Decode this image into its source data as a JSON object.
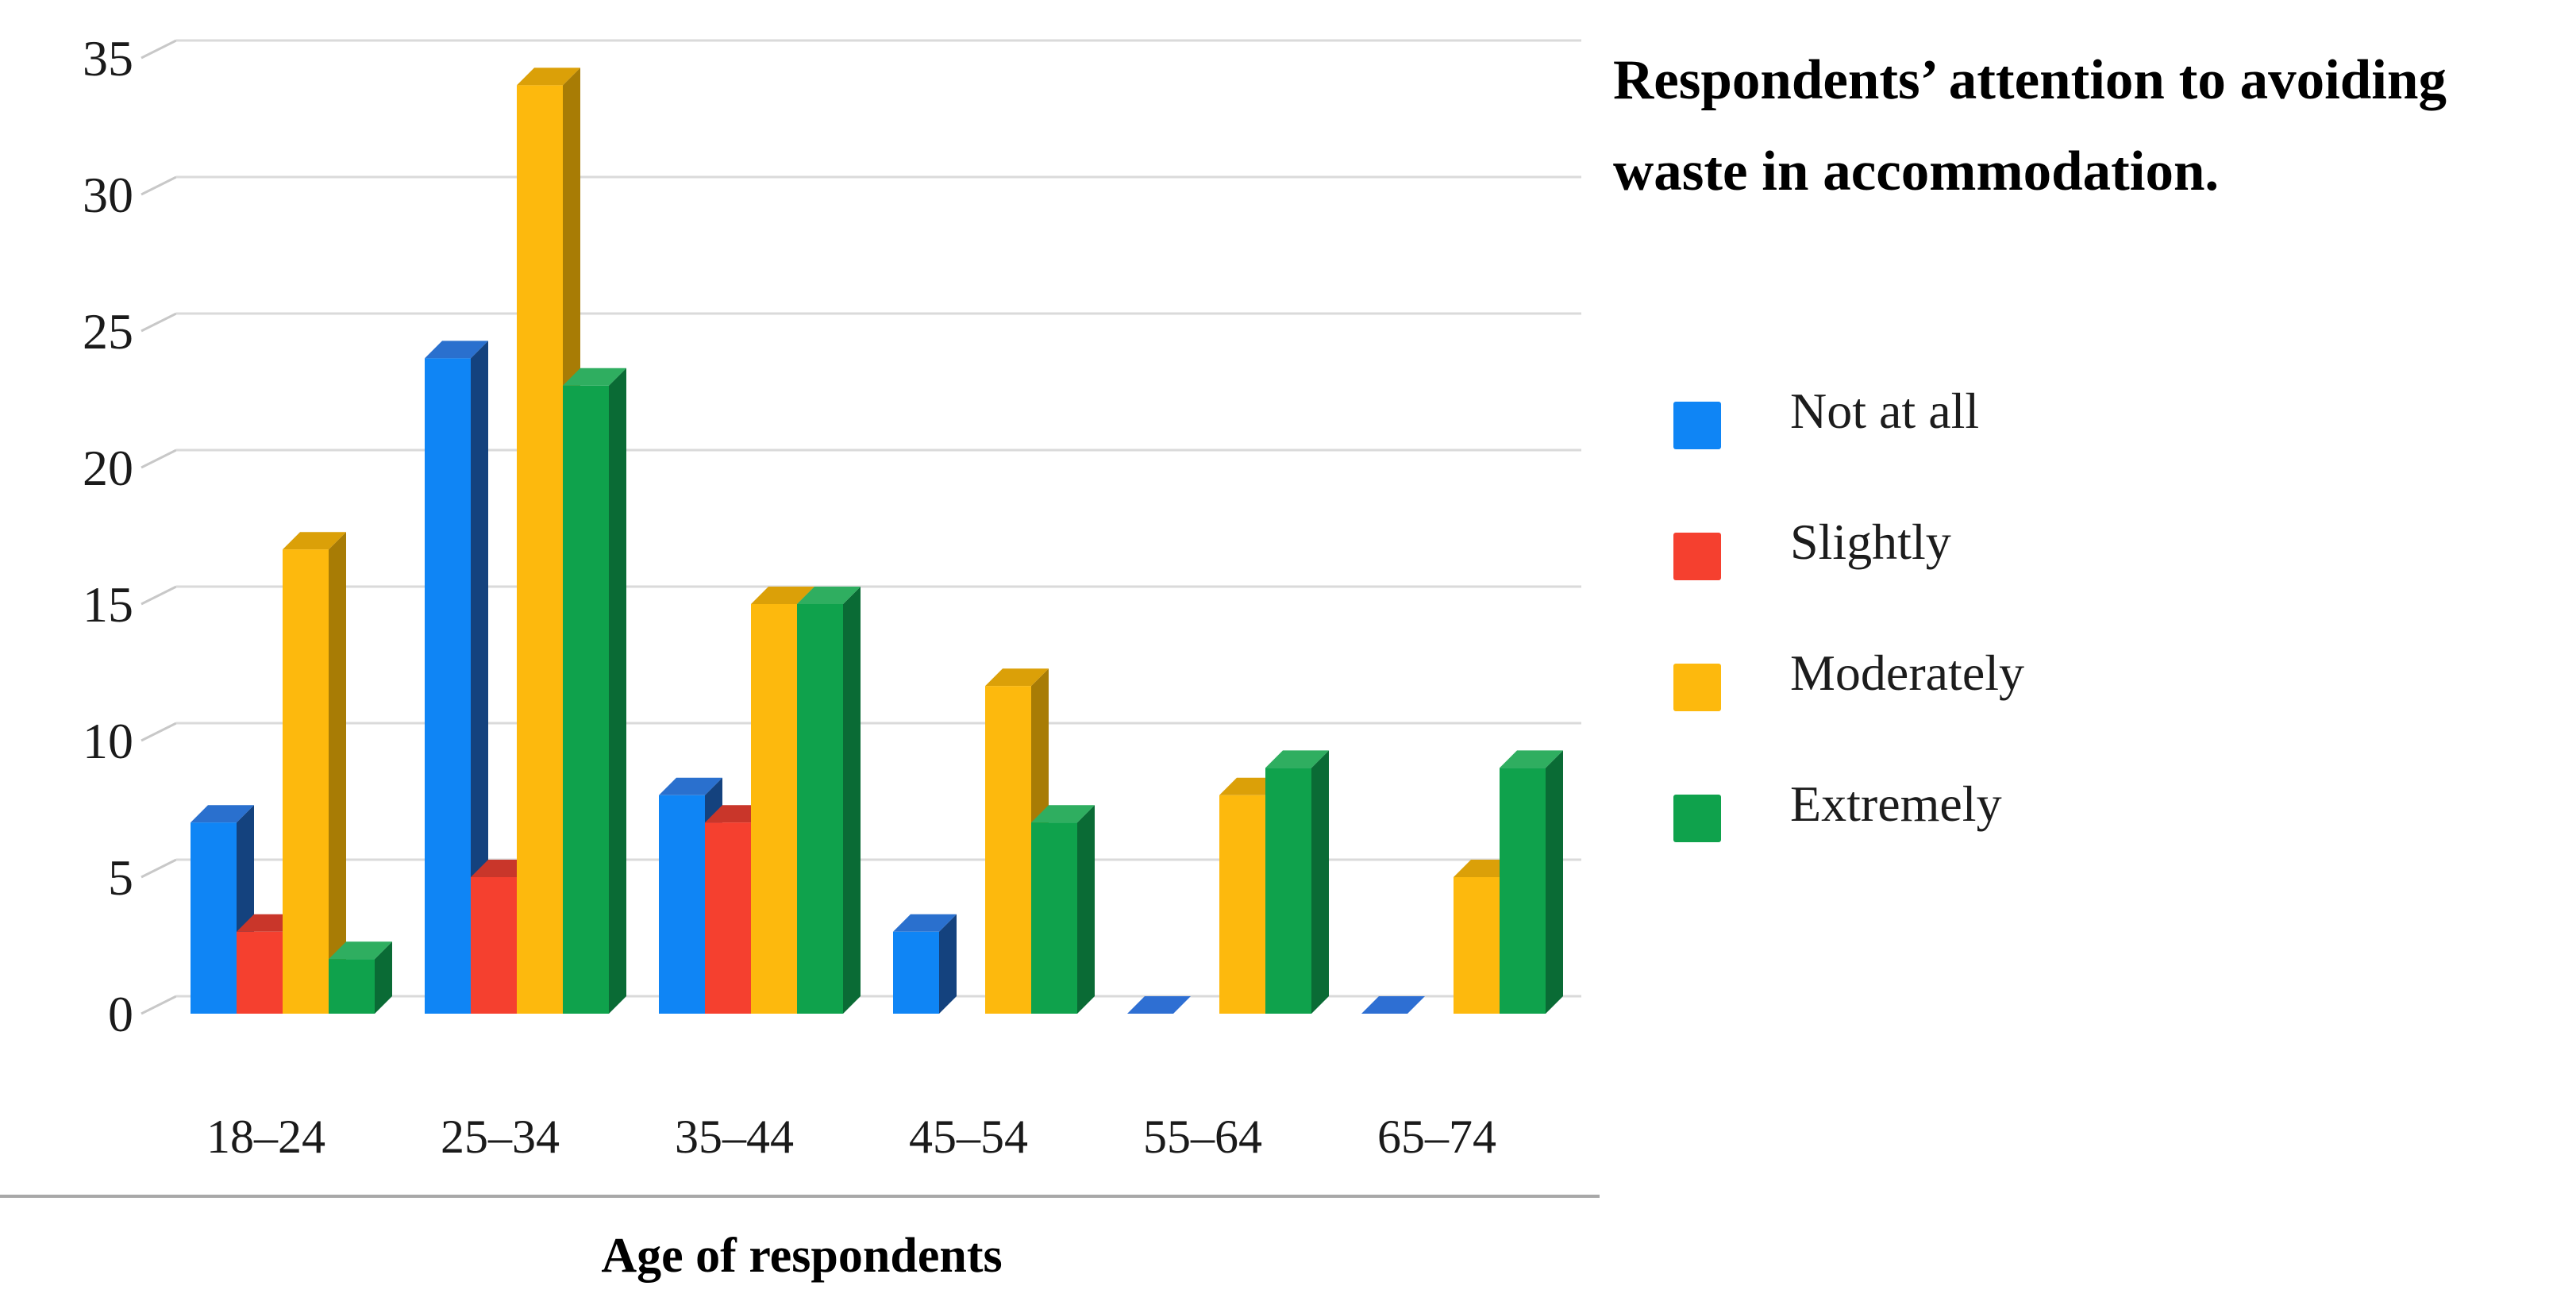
{
  "page": {
    "background": "#ffffff"
  },
  "title": {
    "text": "Respondents’ attention to avoiding waste in accommodation."
  },
  "chart_data": {
    "type": "bar",
    "bar_style": "3d-column",
    "title": "Respondents’ attention to avoiding waste in accommodation.",
    "xlabel": "Age of respondents",
    "ylabel": "",
    "ylim": [
      0,
      35
    ],
    "yticks": [
      0,
      5,
      10,
      15,
      20,
      25,
      30,
      35
    ],
    "grid": true,
    "legend_position": "right",
    "categories": [
      "18–24",
      "25–34",
      "35–44",
      "45–54",
      "55–64",
      "65–74"
    ],
    "series": [
      {
        "name": "Not at all",
        "color": "#0F85F5",
        "top_color": "#2A70CE",
        "side_color": "#14427E",
        "zero_cap_color": "#2E6FD3",
        "zero_marker": "flat-cap",
        "values": [
          7,
          24,
          8,
          3,
          0,
          0
        ]
      },
      {
        "name": "Slightly",
        "color": "#F5402F",
        "top_color": "#C9362A",
        "side_color": "#9B2A1F",
        "zero_marker": "none",
        "values": [
          3,
          5,
          7,
          0,
          0,
          0
        ]
      },
      {
        "name": "Moderately",
        "color": "#FDB90D",
        "top_color": "#DBA008",
        "side_color": "#A87C05",
        "zero_marker": "none",
        "values": [
          17,
          34,
          15,
          12,
          8,
          5
        ]
      },
      {
        "name": "Extremely",
        "color": "#0FA24C",
        "top_color": "#2FAE60",
        "side_color": "#0A6B35",
        "zero_marker": "none",
        "values": [
          2,
          23,
          15,
          7,
          9,
          9
        ]
      }
    ],
    "colors": {
      "gridline": "#dadada",
      "tick_connector": "#c8c8c8",
      "axis_separator": "#a8a8a8",
      "tick_text": "#1a1a1a"
    }
  }
}
